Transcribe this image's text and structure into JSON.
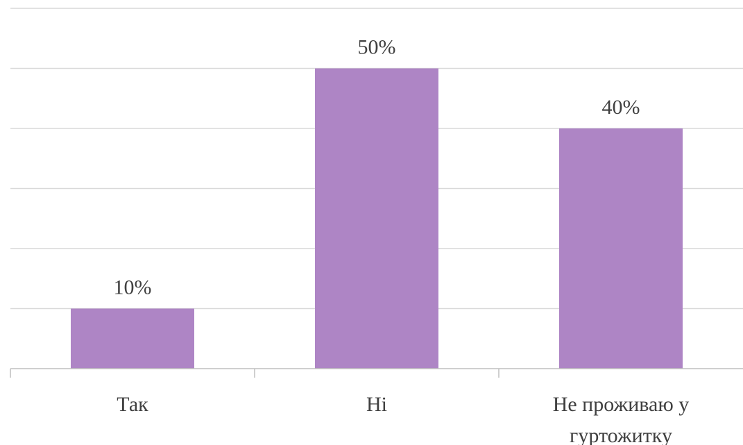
{
  "chart_data": {
    "type": "bar",
    "categories": [
      [
        "Так"
      ],
      [
        "Ні"
      ],
      [
        "Не проживаю у",
        "гуртожитку"
      ]
    ],
    "values": [
      10,
      50,
      40
    ],
    "data_labels": [
      "10%",
      "50%",
      "40%"
    ],
    "unit": "%",
    "ylim": [
      0,
      60
    ],
    "y_gridlines_step": 10,
    "y_tick_labels_visible": false,
    "grid": true,
    "legend": "none",
    "title": "",
    "xlabel": "",
    "ylabel": "",
    "colors": {
      "bar": "#ae85c5",
      "grid": "#d9d9d9",
      "axis": "#bfbfbf",
      "text": "#404040"
    }
  }
}
